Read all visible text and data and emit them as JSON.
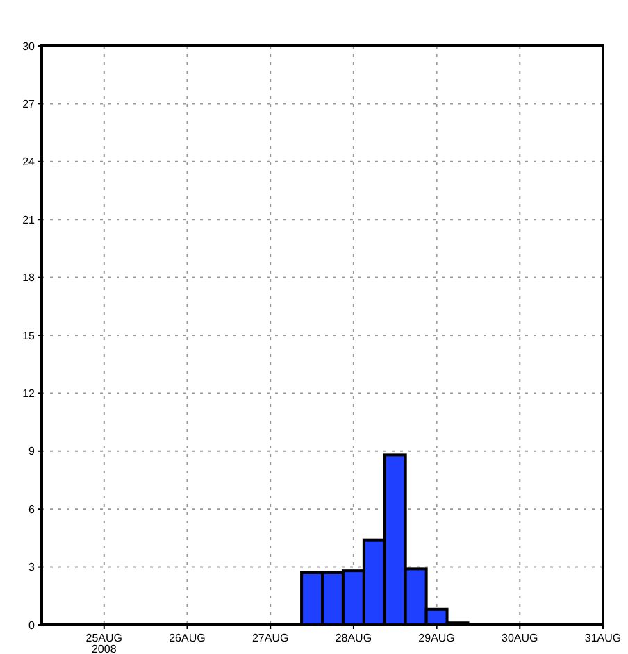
{
  "chart_data": {
    "type": "histogram",
    "color": "#2040ff",
    "bins": [
      "2008-08-27T09:00",
      "2008-08-27T15:00",
      "2008-08-27T21:00",
      "2008-08-28T03:00",
      "2008-08-28T09:00",
      "2008-08-28T15:00",
      "2008-08-28T21:00",
      "2008-08-29T03:00",
      "2008-08-29T09:00"
    ],
    "values": [
      2.7,
      2.7,
      2.8,
      4.4,
      8.8,
      2.9,
      0.8,
      0.1
    ],
    "xlim": [
      "2008-08-24T06:00",
      "2008-08-31T00:00"
    ],
    "xticks": [
      {
        "value": "2008-08-25",
        "label": "25AUG\n2008"
      },
      {
        "value": "2008-08-26",
        "label": "26AUG"
      },
      {
        "value": "2008-08-27",
        "label": "27AUG"
      },
      {
        "value": "2008-08-28",
        "label": "28AUG"
      },
      {
        "value": "2008-08-29",
        "label": "29AUG"
      },
      {
        "value": "2008-08-30",
        "label": "30AUG"
      },
      {
        "value": "2008-08-31",
        "label": "31AUG"
      }
    ],
    "ylim": [
      0,
      30
    ],
    "yticks": [
      0,
      3,
      6,
      9,
      12,
      15,
      18,
      21,
      24,
      27,
      30
    ],
    "grid": true
  }
}
